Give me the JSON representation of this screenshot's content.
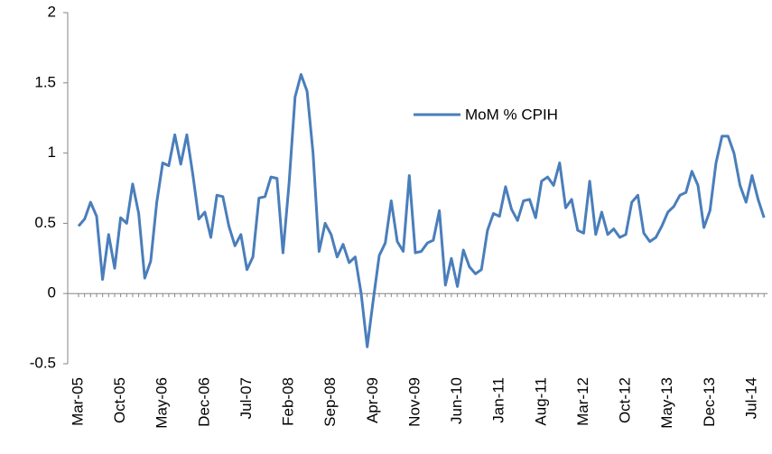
{
  "chart_data": {
    "type": "line",
    "categories": [
      "Mar-05",
      null,
      null,
      null,
      null,
      null,
      null,
      "Oct-05",
      null,
      null,
      null,
      null,
      null,
      null,
      "May-06",
      null,
      null,
      null,
      null,
      null,
      null,
      "Dec-06",
      null,
      null,
      null,
      null,
      null,
      null,
      "Jul-07",
      null,
      null,
      null,
      null,
      null,
      null,
      "Feb-08",
      null,
      null,
      null,
      null,
      null,
      null,
      "Sep-08",
      null,
      null,
      null,
      null,
      null,
      null,
      "Apr-09",
      null,
      null,
      null,
      null,
      null,
      null,
      "Nov-09",
      null,
      null,
      null,
      null,
      null,
      null,
      "Jun-10",
      null,
      null,
      null,
      null,
      null,
      null,
      "Jan-11",
      null,
      null,
      null,
      null,
      null,
      null,
      "Aug-11",
      null,
      null,
      null,
      null,
      null,
      null,
      "Mar-12",
      null,
      null,
      null,
      null,
      null,
      null,
      "Oct-12",
      null,
      null,
      null,
      null,
      null,
      null,
      "May-13",
      null,
      null,
      null,
      null,
      null,
      null,
      "Dec-13",
      null,
      null,
      null,
      null,
      null,
      null,
      "Jul-14",
      null,
      null
    ],
    "series": [
      {
        "name": "MoM % CPIH",
        "color": "#4a7ebb",
        "values": [
          0.48,
          0.53,
          0.65,
          0.55,
          0.1,
          0.42,
          0.18,
          0.54,
          0.5,
          0.78,
          0.57,
          0.11,
          0.23,
          0.65,
          0.93,
          0.91,
          1.13,
          0.92,
          1.13,
          0.85,
          0.53,
          0.58,
          0.4,
          0.7,
          0.69,
          0.48,
          0.34,
          0.42,
          0.17,
          0.26,
          0.68,
          0.69,
          0.83,
          0.82,
          0.29,
          0.78,
          1.4,
          1.56,
          1.44,
          1.0,
          0.3,
          0.5,
          0.42,
          0.26,
          0.35,
          0.22,
          0.26,
          0.0,
          -0.38,
          -0.05,
          0.27,
          0.36,
          0.66,
          0.37,
          0.3,
          0.84,
          0.29,
          0.3,
          0.36,
          0.38,
          0.59,
          0.06,
          0.25,
          0.05,
          0.31,
          0.19,
          0.14,
          0.17,
          0.45,
          0.57,
          0.55,
          0.76,
          0.6,
          0.52,
          0.66,
          0.67,
          0.54,
          0.8,
          0.83,
          0.77,
          0.93,
          0.61,
          0.67,
          0.45,
          0.43,
          0.8,
          0.42,
          0.58,
          0.42,
          0.46,
          0.4,
          0.42,
          0.65,
          0.7,
          0.43,
          0.37,
          0.4,
          0.48,
          0.58,
          0.62,
          0.7,
          0.72,
          0.87,
          0.77,
          0.47,
          0.59,
          0.93,
          1.12,
          1.12,
          1.0,
          0.77,
          0.65,
          0.84,
          0.67,
          0.54
        ]
      }
    ],
    "ylim": [
      -0.5,
      2
    ],
    "yticks": [
      -0.5,
      0,
      0.5,
      1,
      1.5,
      2
    ]
  }
}
